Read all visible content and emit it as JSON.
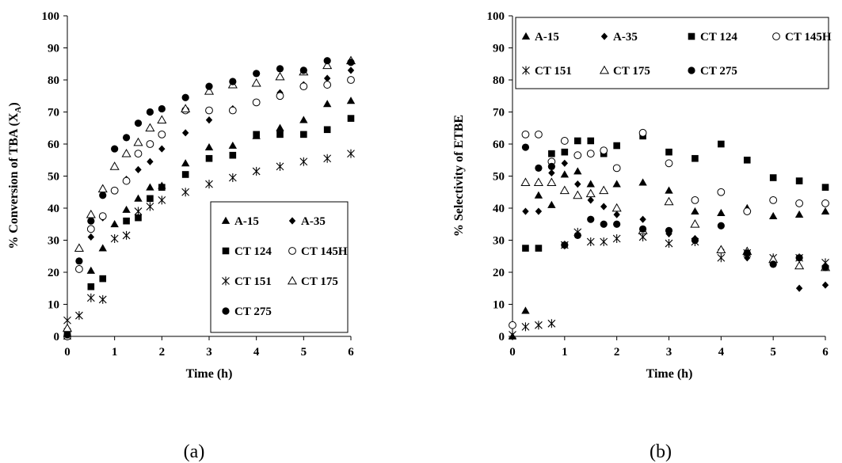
{
  "chart_data": [
    {
      "type": "scatter",
      "panel_label": "(a)",
      "xlabel": "Time (h)",
      "ylabel": "% Conversion of TBA (X_A)",
      "ylabel_main": "% Conversion of TBA (X",
      "ylabel_sub": "A",
      "ylabel_end": ")",
      "xlim": [
        0,
        6
      ],
      "ylim": [
        0,
        100
      ],
      "xticks": [
        0,
        1,
        2,
        3,
        4,
        5,
        6
      ],
      "yticks": [
        0,
        10,
        20,
        30,
        40,
        50,
        60,
        70,
        80,
        90,
        100
      ],
      "grid": false,
      "legend_position": "bottom-right",
      "series": [
        {
          "name": "A-15",
          "marker": "filled-triangle",
          "x": [
            0,
            0.5,
            0.75,
            1,
            1.25,
            1.5,
            1.75,
            2,
            2.5,
            3,
            3.5,
            4,
            4.5,
            5,
            5.5,
            6
          ],
          "y": [
            0,
            20.5,
            27.5,
            35,
            39.5,
            43,
            46.5,
            47,
            54,
            59,
            59.5,
            62.5,
            65,
            67.5,
            72.5,
            73.5
          ]
        },
        {
          "name": "A-35",
          "marker": "filled-diamond",
          "x": [
            0,
            0.5,
            0.75,
            1,
            1.25,
            1.5,
            1.75,
            2,
            2.5,
            3,
            3.5,
            4,
            4.5,
            5,
            5.5,
            6
          ],
          "y": [
            0,
            31,
            37,
            45.5,
            49,
            52,
            54.5,
            58.5,
            63.5,
            67.5,
            71,
            73,
            76,
            78.5,
            80.5,
            83
          ]
        },
        {
          "name": "CT 124",
          "marker": "filled-square",
          "x": [
            0,
            0.5,
            0.75,
            1.25,
            1.5,
            1.75,
            2,
            2.5,
            3,
            3.5,
            4,
            4.5,
            5,
            5.5,
            6
          ],
          "y": [
            1.5,
            15.5,
            18,
            36,
            37,
            43,
            46.5,
            50.5,
            55.5,
            56.5,
            63,
            63,
            63,
            64.5,
            68
          ]
        },
        {
          "name": "CT 145H",
          "marker": "open-circle",
          "x": [
            0,
            0.25,
            0.5,
            0.75,
            1,
            1.25,
            1.5,
            1.75,
            2,
            2.5,
            3,
            3.5,
            4,
            4.5,
            5,
            5.5,
            6
          ],
          "y": [
            0,
            21,
            33.5,
            37.5,
            45.5,
            48.5,
            57,
            60,
            63,
            70.5,
            70.5,
            70.5,
            73,
            75,
            78,
            78.5,
            80
          ]
        },
        {
          "name": "CT 151",
          "marker": "asterisk",
          "x": [
            0,
            0.25,
            0.5,
            0.75,
            1,
            1.25,
            1.5,
            1.75,
            2,
            2.5,
            3,
            3.5,
            4,
            4.5,
            5,
            5.5,
            6
          ],
          "y": [
            5,
            6.5,
            12,
            11.5,
            30.5,
            31.5,
            39,
            40.5,
            42.5,
            45,
            47.5,
            49.5,
            51.5,
            53,
            54.5,
            55.5,
            57
          ]
        },
        {
          "name": "CT 175",
          "marker": "open-triangle",
          "x": [
            0,
            0.25,
            0.5,
            0.75,
            1,
            1.25,
            1.5,
            1.75,
            2,
            2.5,
            3,
            3.5,
            4,
            4.5,
            5,
            5.5,
            6
          ],
          "y": [
            2.5,
            27.5,
            38,
            46,
            53,
            57,
            60.5,
            65,
            67.5,
            71,
            76.5,
            78.5,
            79,
            81,
            82.5,
            84.5,
            86
          ]
        },
        {
          "name": "CT 275",
          "marker": "filled-circle",
          "x": [
            0,
            0.25,
            0.5,
            0.75,
            1,
            1.25,
            1.5,
            1.75,
            2,
            2.5,
            3,
            3.5,
            4,
            4.5,
            5,
            5.5,
            6
          ],
          "y": [
            0.5,
            23.5,
            36,
            44,
            58.5,
            62,
            66.5,
            70,
            71,
            74.5,
            78,
            79.5,
            82,
            83.5,
            83,
            86,
            85.5
          ]
        }
      ]
    },
    {
      "type": "scatter",
      "panel_label": "(b)",
      "xlabel": "Time (h)",
      "ylabel": "% Selectivity of ETBE",
      "ylabel_main": "% Selectivity of ETBE",
      "ylabel_sub": "",
      "ylabel_end": "",
      "xlim": [
        0,
        6
      ],
      "ylim": [
        0,
        100
      ],
      "xticks": [
        0,
        1,
        2,
        3,
        4,
        5,
        6
      ],
      "yticks": [
        0,
        10,
        20,
        30,
        40,
        50,
        60,
        70,
        80,
        90,
        100
      ],
      "grid": false,
      "legend_position": "top",
      "series": [
        {
          "name": "A-15",
          "marker": "filled-triangle",
          "x": [
            0,
            0.25,
            0.5,
            0.75,
            1,
            1.25,
            1.5,
            1.75,
            2,
            2.5,
            3,
            3.5,
            4,
            4.5,
            5,
            5.5,
            6
          ],
          "y": [
            0,
            8,
            44,
            41,
            50.5,
            51.5,
            47.5,
            45.5,
            47.5,
            48,
            45.5,
            39,
            38.5,
            40,
            37.5,
            38,
            39
          ]
        },
        {
          "name": "A-35",
          "marker": "filled-diamond",
          "x": [
            0.25,
            0.5,
            0.75,
            1,
            1.25,
            1.5,
            1.75,
            2,
            2.5,
            3,
            3.5,
            4,
            4.5,
            5,
            5.5,
            6
          ],
          "y": [
            39,
            39,
            51,
            54,
            47.5,
            42.5,
            40.5,
            38,
            36.5,
            32,
            30.5,
            27,
            24.5,
            22.5,
            15,
            16
          ]
        },
        {
          "name": "CT 124",
          "marker": "filled-square",
          "x": [
            0.25,
            0.5,
            0.75,
            1,
            1.25,
            1.5,
            1.75,
            2,
            2.5,
            3,
            3.5,
            4,
            4.5,
            5,
            5.5,
            6
          ],
          "y": [
            27.5,
            27.5,
            57,
            57.5,
            61,
            61,
            57,
            59.5,
            62.5,
            57.5,
            55.5,
            60,
            55,
            49.5,
            48.5,
            46.5
          ]
        },
        {
          "name": "CT 145H",
          "marker": "open-circle",
          "x": [
            0,
            0.25,
            0.5,
            0.75,
            1,
            1.25,
            1.5,
            1.75,
            2,
            2.5,
            3,
            3.5,
            4,
            4.5,
            5,
            5.5,
            6
          ],
          "y": [
            3.5,
            63,
            63,
            54.5,
            61,
            56.5,
            57,
            58,
            52.5,
            63.5,
            54,
            42.5,
            45,
            39,
            42.5,
            41.5,
            41.5
          ]
        },
        {
          "name": "CT 151",
          "marker": "asterisk",
          "x": [
            0,
            0.25,
            0.5,
            0.75,
            1,
            1.25,
            1.5,
            1.75,
            2,
            2.5,
            3,
            3.5,
            4,
            4.5,
            5,
            5.5,
            6
          ],
          "y": [
            0.5,
            3,
            3.5,
            4,
            28.5,
            32.5,
            29.5,
            29.5,
            30.5,
            31,
            29,
            29.5,
            24.5,
            26,
            24.5,
            24.5,
            23
          ]
        },
        {
          "name": "CT 175",
          "marker": "open-triangle",
          "x": [
            0.25,
            0.5,
            0.75,
            1,
            1.25,
            1.5,
            1.75,
            2,
            2.5,
            3,
            3.5,
            4,
            4.5,
            5,
            5.5,
            6
          ],
          "y": [
            48,
            48,
            48,
            45.5,
            44,
            44.5,
            45.5,
            40,
            33,
            42,
            35,
            27,
            26.5,
            24,
            22,
            21.5
          ]
        },
        {
          "name": "CT 275",
          "marker": "filled-circle",
          "x": [
            0.25,
            0.5,
            0.75,
            1,
            1.25,
            1.5,
            1.75,
            2,
            2.5,
            3,
            3.5,
            4,
            4.5,
            5,
            5.5,
            6
          ],
          "y": [
            59,
            52.5,
            53,
            28.5,
            31.5,
            36.5,
            35,
            35,
            33.5,
            33,
            30,
            34.5,
            26,
            22.5,
            24.5,
            21.5
          ]
        }
      ]
    }
  ]
}
